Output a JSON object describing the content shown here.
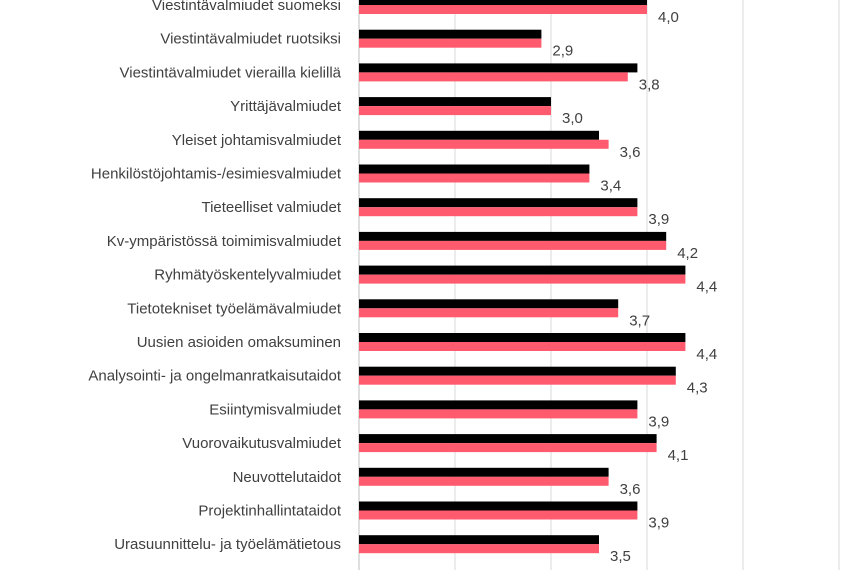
{
  "chart_data": {
    "type": "bar",
    "orientation": "horizontal",
    "xlim": [
      1,
      6
    ],
    "grid": true,
    "categories": [
      "Viestintävalmiudet suomeksi",
      "Viestintävalmiudet ruotsiksi",
      "Viestintävalmiudet vierailla kielillä",
      "Yrittäjävalmiudet",
      "Yleiset johtamisvalmiudet",
      "Henkilöstöjohtamis-/esimiesvalmiudet",
      "Tieteelliset valmiudet",
      "Kv-ympäristössä toimimisvalmiudet",
      "Ryhmätyöskentelyvalmiudet",
      "Tietotekniset työelämävalmiudet",
      "Uusien asioiden omaksuminen",
      "Analysointi- ja ongelmanratkaisutaidot",
      "Esiintymisvalmiudet",
      "Vuorovaikutusvalmiudet",
      "Neuvottelutaidot",
      "Projektinhallintataidot",
      "Urasuunnittelu- ja työelämätietous"
    ],
    "series": [
      {
        "color": "#000000",
        "values": [
          4.0,
          2.9,
          3.9,
          3.0,
          3.5,
          3.4,
          3.9,
          4.2,
          4.4,
          3.7,
          4.4,
          4.3,
          3.9,
          4.1,
          3.6,
          3.9,
          3.5
        ]
      },
      {
        "color": "#ff5a6e",
        "values": [
          4.0,
          2.9,
          3.8,
          3.0,
          3.6,
          3.4,
          3.9,
          4.2,
          4.4,
          3.7,
          4.4,
          4.3,
          3.9,
          4.1,
          3.6,
          3.9,
          3.5
        ],
        "data_labels": [
          "4,0",
          "2,9",
          "3,8",
          "3,0",
          "3,6",
          "3,4",
          "3,9",
          "4,2",
          "4,4",
          "3,7",
          "4,4",
          "4,3",
          "3,9",
          "4,1",
          "3,6",
          "3,9",
          "3,5"
        ]
      }
    ]
  }
}
